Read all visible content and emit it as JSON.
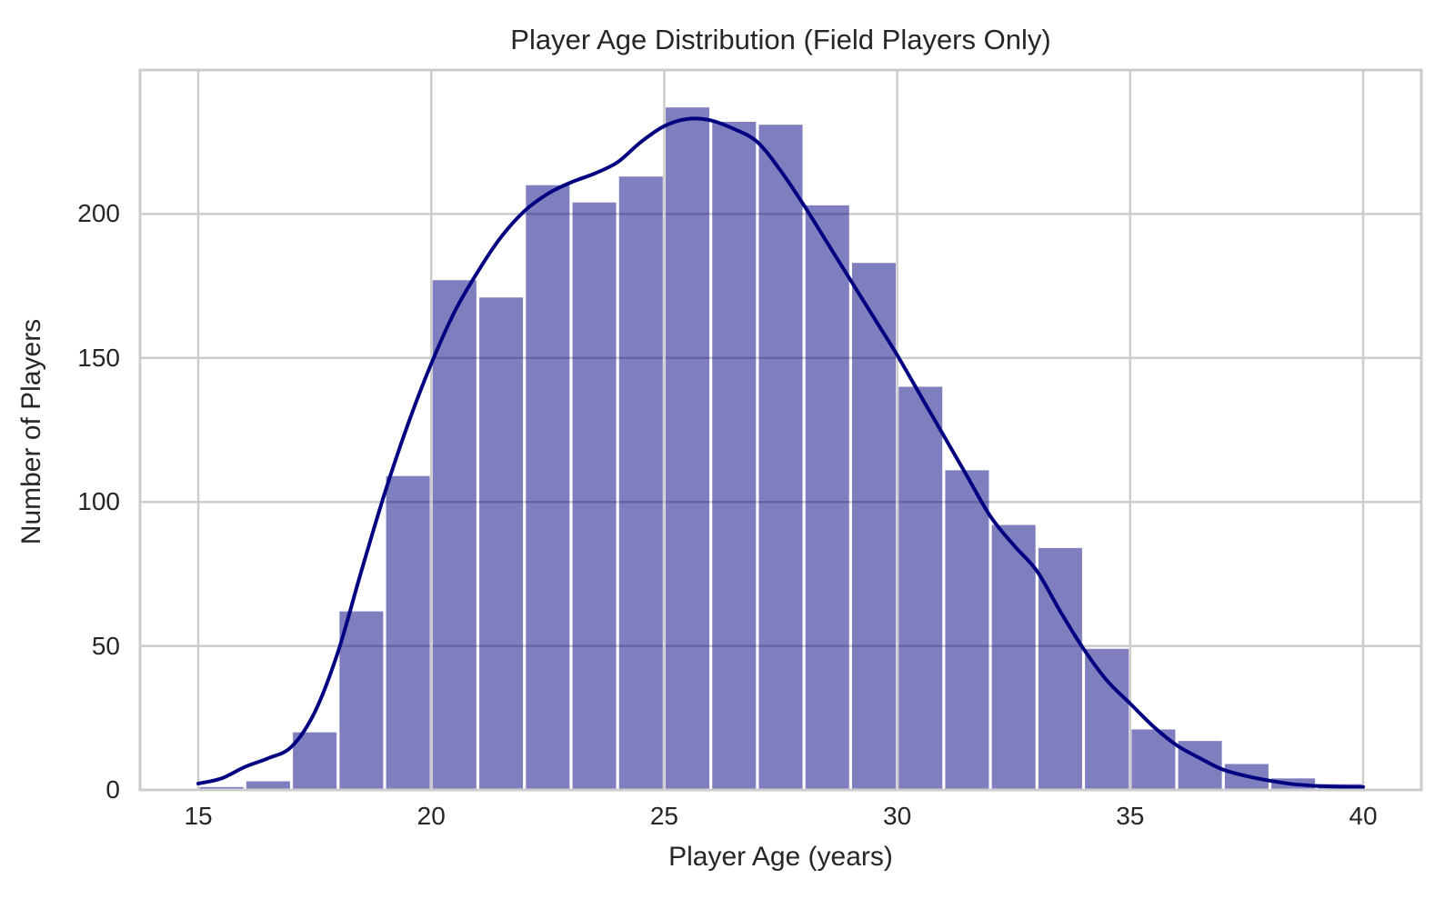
{
  "chart_data": {
    "type": "bar",
    "subtype": "histogram-with-kde",
    "title": "Player Age Distribution (Field Players Only)",
    "xlabel": "Player Age (years)",
    "ylabel": "Number of Players",
    "bin_edges": [
      15,
      16,
      17,
      18,
      19,
      20,
      21,
      22,
      23,
      24,
      25,
      26,
      27,
      28,
      29,
      30,
      31,
      32,
      33,
      34,
      35,
      36,
      37,
      38,
      39,
      40
    ],
    "counts": [
      1,
      3,
      20,
      62,
      109,
      177,
      171,
      210,
      204,
      213,
      237,
      232,
      231,
      203,
      183,
      140,
      111,
      92,
      84,
      49,
      21,
      17,
      9,
      4,
      2
    ],
    "kde_points": [
      [
        15,
        2.2
      ],
      [
        15.5,
        4
      ],
      [
        16,
        8
      ],
      [
        16.5,
        11
      ],
      [
        17,
        15
      ],
      [
        17.5,
        27
      ],
      [
        18,
        48
      ],
      [
        18.5,
        76
      ],
      [
        19,
        103
      ],
      [
        19.5,
        127
      ],
      [
        20,
        148
      ],
      [
        20.5,
        166
      ],
      [
        21,
        180
      ],
      [
        21.5,
        192
      ],
      [
        22,
        201
      ],
      [
        22.5,
        207
      ],
      [
        23,
        211
      ],
      [
        23.5,
        214
      ],
      [
        24,
        218
      ],
      [
        24.5,
        225
      ],
      [
        25,
        230.5
      ],
      [
        25.5,
        233
      ],
      [
        26,
        232.5
      ],
      [
        26.5,
        229.5
      ],
      [
        27,
        225
      ],
      [
        27.5,
        215
      ],
      [
        28,
        203
      ],
      [
        28.5,
        190
      ],
      [
        29,
        177
      ],
      [
        29.5,
        164
      ],
      [
        30,
        151
      ],
      [
        30.5,
        137
      ],
      [
        31,
        123
      ],
      [
        31.5,
        109
      ],
      [
        32,
        95
      ],
      [
        32.5,
        85
      ],
      [
        33,
        76
      ],
      [
        33.5,
        62
      ],
      [
        34,
        49
      ],
      [
        34.5,
        38
      ],
      [
        35,
        30
      ],
      [
        35.5,
        22
      ],
      [
        36,
        15.5
      ],
      [
        36.5,
        11
      ],
      [
        37,
        7
      ],
      [
        37.5,
        4.8
      ],
      [
        38,
        3.2
      ],
      [
        38.5,
        2
      ],
      [
        39,
        1.4
      ],
      [
        39.5,
        1.1
      ],
      [
        40,
        1
      ]
    ],
    "x_ticks": [
      15,
      20,
      25,
      30,
      35,
      40
    ],
    "y_ticks": [
      0,
      50,
      100,
      150,
      200
    ],
    "xlim": [
      13.75,
      41.25
    ],
    "ylim": [
      0,
      250
    ],
    "grid": true,
    "legend_position": "none",
    "colors": {
      "bar_fill": "#000080",
      "bar_fill_opacity": 0.5,
      "bar_gap": "#ffffff",
      "kde_line": "#000080",
      "grid_line": "#cccccc",
      "spine": "#cccccc",
      "text": "#262626",
      "background": "#ffffff"
    }
  }
}
